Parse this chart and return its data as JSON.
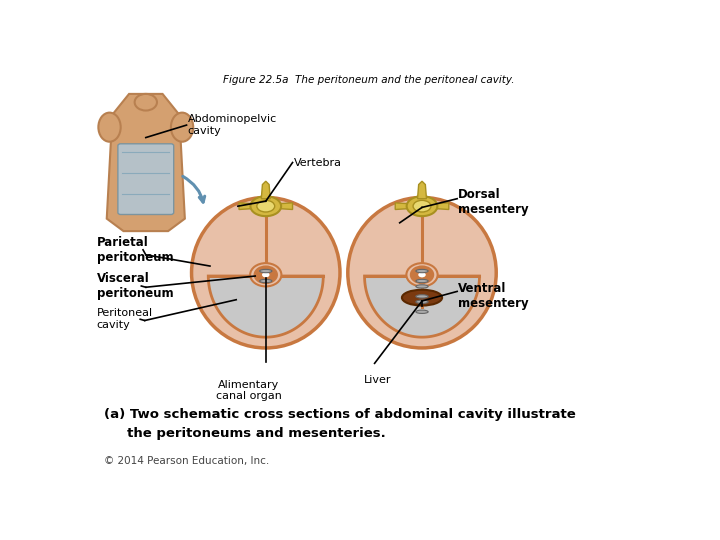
{
  "title": "Figure 22.5a  The peritoneum and the peritoneal cavity.",
  "caption_line1": "(a) Two schematic cross sections of abdominal cavity illustrate",
  "caption_line2": "     the peritoneums and mesenteries.",
  "copyright": "© 2014 Pearson Education, Inc.",
  "bg_color": "#FFFFFF",
  "outer_ellipse_color": "#E8C0A8",
  "outer_ellipse_edge": "#C87840",
  "cavity_fill": "#C8C8C8",
  "peritoneum_line": "#C87840",
  "vertebra_fill": "#D4B840",
  "vertebra_edge": "#A89020",
  "vertebra_inner": "#E8D870",
  "liver_fill": "#7B3A10",
  "liver_edge": "#5A2800",
  "skin_fill": "#D4A070",
  "skin_edge": "#B88050",
  "abdom_fill": "#B0C8D8",
  "arrow_color": "#6090B0",
  "labels": {
    "abdominopelvic": "Abdominopelvic\ncavity",
    "vertebra": "Vertebra",
    "dorsal": "Dorsal\nmesentery",
    "parietal": "Parietal\nperitoneum",
    "visceral": "Visceral\nperitoneum",
    "peritoneal": "Peritoneal\ncavity",
    "alimentary": "Alimentary\ncanal organ",
    "liver": "Liver",
    "ventral": "Ventral\nmesentery"
  },
  "lc": [
    0.315,
    0.5
  ],
  "rc": [
    0.595,
    0.5
  ],
  "erx": 0.125,
  "ery": 0.175
}
